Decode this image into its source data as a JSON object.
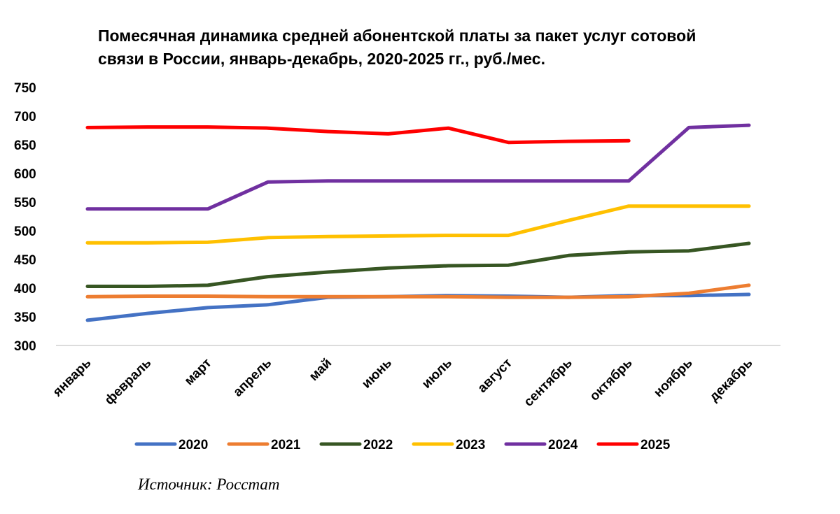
{
  "chart_data": {
    "type": "line",
    "title_lines": [
      "Помесячная динамика средней абонентской платы за пакет услуг сотовой",
      "связи в России, январь-декабрь, 2020-2025 гг., руб./мес."
    ],
    "categories": [
      "январь",
      "февраль",
      "март",
      "апрель",
      "май",
      "июнь",
      "июль",
      "август",
      "сентябрь",
      "октябрь",
      "ноябрь",
      "декабрь"
    ],
    "ylim": [
      300,
      750
    ],
    "yticks": [
      300,
      350,
      400,
      450,
      500,
      550,
      600,
      650,
      700,
      750
    ],
    "grid": false,
    "legend_position": "bottom",
    "series": [
      {
        "name": "2020",
        "color": "#4472C4",
        "values": [
          344,
          356,
          366,
          371,
          384,
          385,
          387,
          386,
          384,
          387,
          387,
          389
        ]
      },
      {
        "name": "2021",
        "color": "#ED7D31",
        "values": [
          385,
          386,
          386,
          385,
          385,
          385,
          385,
          384,
          384,
          385,
          391,
          405
        ]
      },
      {
        "name": "2022",
        "color": "#375623",
        "values": [
          403,
          403,
          405,
          420,
          428,
          435,
          439,
          440,
          457,
          463,
          465,
          478
        ]
      },
      {
        "name": "2023",
        "color": "#FFC000",
        "values": [
          479,
          479,
          480,
          488,
          490,
          491,
          492,
          492,
          518,
          543,
          543,
          543
        ]
      },
      {
        "name": "2024",
        "color": "#7030A0",
        "values": [
          538,
          538,
          538,
          585,
          587,
          587,
          587,
          587,
          587,
          587,
          680,
          684
        ]
      },
      {
        "name": "2025",
        "color": "#FF0000",
        "values": [
          680,
          681,
          681,
          679,
          673,
          669,
          679,
          654,
          656,
          657,
          null,
          null
        ]
      }
    ],
    "source": "Источник: Росстат"
  }
}
